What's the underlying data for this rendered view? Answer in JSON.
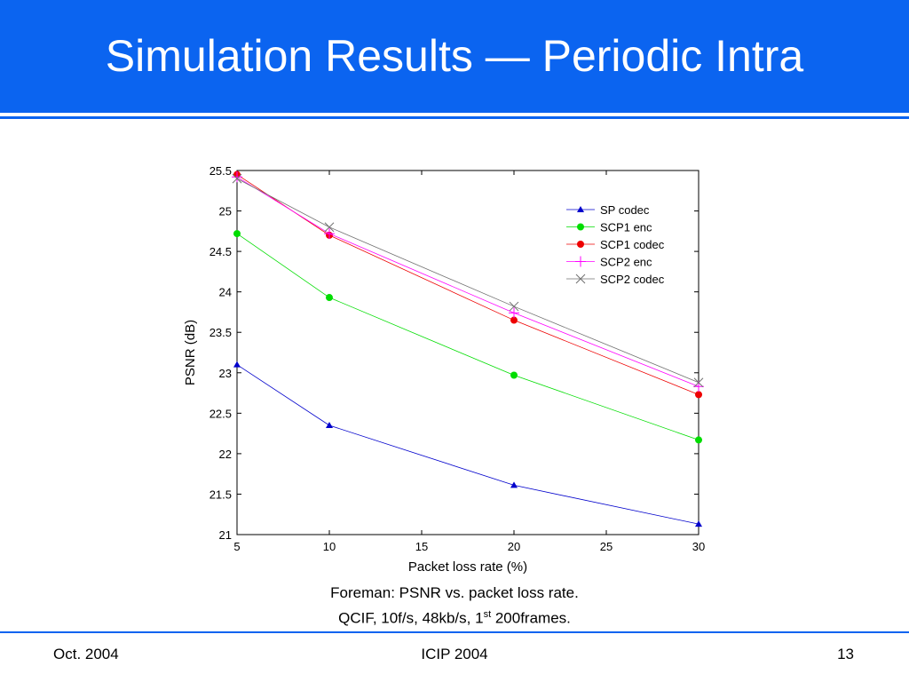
{
  "slide": {
    "title": "Simulation Results — Periodic Intra",
    "caption_line1": "Foreman: PSNR vs. packet loss rate.",
    "caption_line2_pre": "QCIF, 10f/s, 48kb/s, 1",
    "caption_line2_sup": "st",
    "caption_line2_post": " 200frames.",
    "footer_left": "Oct. 2004",
    "footer_center": "ICIP 2004",
    "footer_right": "13",
    "accent_color": "#0b64f0"
  },
  "chart_data": {
    "type": "line",
    "xlabel": "Packet loss rate (%)",
    "ylabel": "PSNR (dB)",
    "xlim": [
      5,
      30
    ],
    "ylim": [
      21,
      25.5
    ],
    "xticks": [
      5,
      10,
      15,
      20,
      25,
      30
    ],
    "yticks": [
      21,
      21.5,
      22,
      22.5,
      23,
      23.5,
      24,
      24.5,
      25,
      25.5
    ],
    "grid": false,
    "legend_position": "top-right",
    "x": [
      5,
      10,
      20,
      30
    ],
    "series": [
      {
        "name": "SP codec",
        "color": "#0000cc",
        "marker": "triangle",
        "values": [
          23.1,
          22.35,
          21.61,
          21.13
        ]
      },
      {
        "name": "SCP1 enc",
        "color": "#00dd00",
        "marker": "dot",
        "values": [
          24.72,
          23.93,
          22.97,
          22.17
        ]
      },
      {
        "name": "SCP1 codec",
        "color": "#ee0000",
        "marker": "dot",
        "values": [
          25.45,
          24.7,
          23.65,
          22.73
        ]
      },
      {
        "name": "SCP2 enc",
        "color": "#ff00ff",
        "marker": "plus",
        "values": [
          25.42,
          24.72,
          23.74,
          22.83
        ]
      },
      {
        "name": "SCP2 codec",
        "color": "#707070",
        "marker": "x",
        "values": [
          25.4,
          24.8,
          23.82,
          22.88
        ]
      }
    ]
  }
}
